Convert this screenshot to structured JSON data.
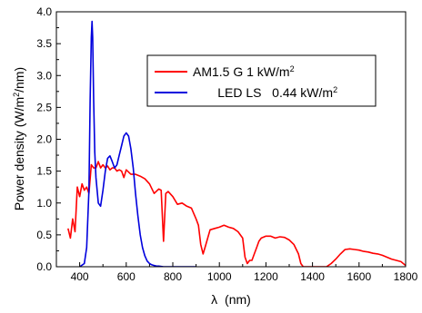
{
  "chart_data": {
    "type": "line",
    "xlabel_symbol": "λ",
    "xlabel_unit": "(nm)",
    "ylabel_main": "Power density (W/m",
    "ylabel_sup": "2",
    "ylabel_tail": "/nm)",
    "xlim": [
      300,
      1800
    ],
    "ylim": [
      0,
      4.0
    ],
    "x_ticks": [
      400,
      600,
      800,
      1000,
      1200,
      1400,
      1600,
      1800
    ],
    "x_tick_labels": [
      "400",
      "600",
      "800",
      "1000",
      "1200",
      "1400",
      "1600",
      "1800"
    ],
    "y_ticks": [
      0,
      0.5,
      1.0,
      1.5,
      2.0,
      2.5,
      3.0,
      3.5,
      4.0
    ],
    "y_tick_labels": [
      "0.0",
      "0.5",
      "1.0",
      "1.5",
      "2.0",
      "2.5",
      "3.0",
      "3.5",
      "4.0"
    ],
    "grid": false,
    "legend_position": "upper-right-inside",
    "series": [
      {
        "name": "AM1.5 G 1 kW/m",
        "name_sup": "2",
        "color": "#ff0000",
        "x": [
          350,
          360,
          370,
          380,
          390,
          400,
          410,
          420,
          430,
          440,
          450,
          460,
          470,
          480,
          490,
          500,
          510,
          520,
          530,
          540,
          550,
          560,
          570,
          580,
          590,
          600,
          620,
          640,
          660,
          680,
          700,
          720,
          740,
          750,
          760,
          770,
          780,
          800,
          820,
          840,
          860,
          880,
          900,
          910,
          920,
          930,
          940,
          950,
          960,
          980,
          1000,
          1020,
          1040,
          1060,
          1080,
          1100,
          1110,
          1120,
          1130,
          1140,
          1150,
          1160,
          1170,
          1180,
          1200,
          1220,
          1240,
          1260,
          1280,
          1300,
          1320,
          1340,
          1350,
          1360,
          1380,
          1400,
          1420,
          1440,
          1460,
          1480,
          1500,
          1520,
          1540,
          1560,
          1580,
          1600,
          1620,
          1640,
          1660,
          1680,
          1700,
          1720,
          1740,
          1760,
          1780,
          1800
        ],
        "y": [
          0.6,
          0.45,
          0.75,
          0.55,
          1.25,
          1.1,
          1.3,
          1.2,
          1.25,
          1.15,
          1.6,
          1.55,
          1.55,
          1.65,
          1.55,
          1.6,
          1.55,
          1.58,
          1.52,
          1.55,
          1.55,
          1.5,
          1.52,
          1.5,
          1.4,
          1.52,
          1.45,
          1.45,
          1.42,
          1.38,
          1.3,
          1.15,
          1.22,
          1.2,
          0.4,
          1.15,
          1.18,
          1.1,
          0.98,
          1.0,
          0.95,
          0.92,
          0.75,
          0.65,
          0.35,
          0.2,
          0.32,
          0.45,
          0.58,
          0.6,
          0.62,
          0.65,
          0.62,
          0.6,
          0.55,
          0.45,
          0.15,
          0.05,
          0.1,
          0.1,
          0.2,
          0.3,
          0.4,
          0.45,
          0.48,
          0.48,
          0.45,
          0.47,
          0.46,
          0.42,
          0.35,
          0.2,
          0.05,
          0.0,
          0.0,
          0.0,
          0.0,
          0.0,
          0.0,
          0.05,
          0.12,
          0.2,
          0.27,
          0.28,
          0.27,
          0.26,
          0.24,
          0.23,
          0.21,
          0.2,
          0.18,
          0.15,
          0.12,
          0.1,
          0.08,
          0.02
        ]
      },
      {
        "name": "LED LS   0.44 kW/m",
        "name_sup": "2",
        "color": "#0000dd",
        "x": [
          400,
          420,
          430,
          440,
          445,
          450,
          453,
          456,
          460,
          465,
          470,
          480,
          490,
          500,
          510,
          520,
          530,
          540,
          550,
          560,
          570,
          580,
          590,
          600,
          610,
          620,
          630,
          640,
          650,
          660,
          670,
          680,
          690,
          700,
          710,
          720,
          730,
          740,
          760,
          780,
          800,
          850,
          900
        ],
        "y": [
          0.0,
          0.05,
          0.3,
          1.2,
          2.6,
          3.6,
          3.85,
          3.6,
          2.6,
          1.8,
          1.4,
          1.0,
          0.95,
          1.2,
          1.5,
          1.7,
          1.74,
          1.65,
          1.55,
          1.6,
          1.75,
          1.9,
          2.05,
          2.1,
          2.05,
          1.85,
          1.55,
          1.15,
          0.8,
          0.5,
          0.3,
          0.17,
          0.09,
          0.05,
          0.03,
          0.02,
          0.01,
          0.01,
          0.0,
          0.0,
          0.0,
          0.0,
          0.0
        ]
      }
    ]
  }
}
